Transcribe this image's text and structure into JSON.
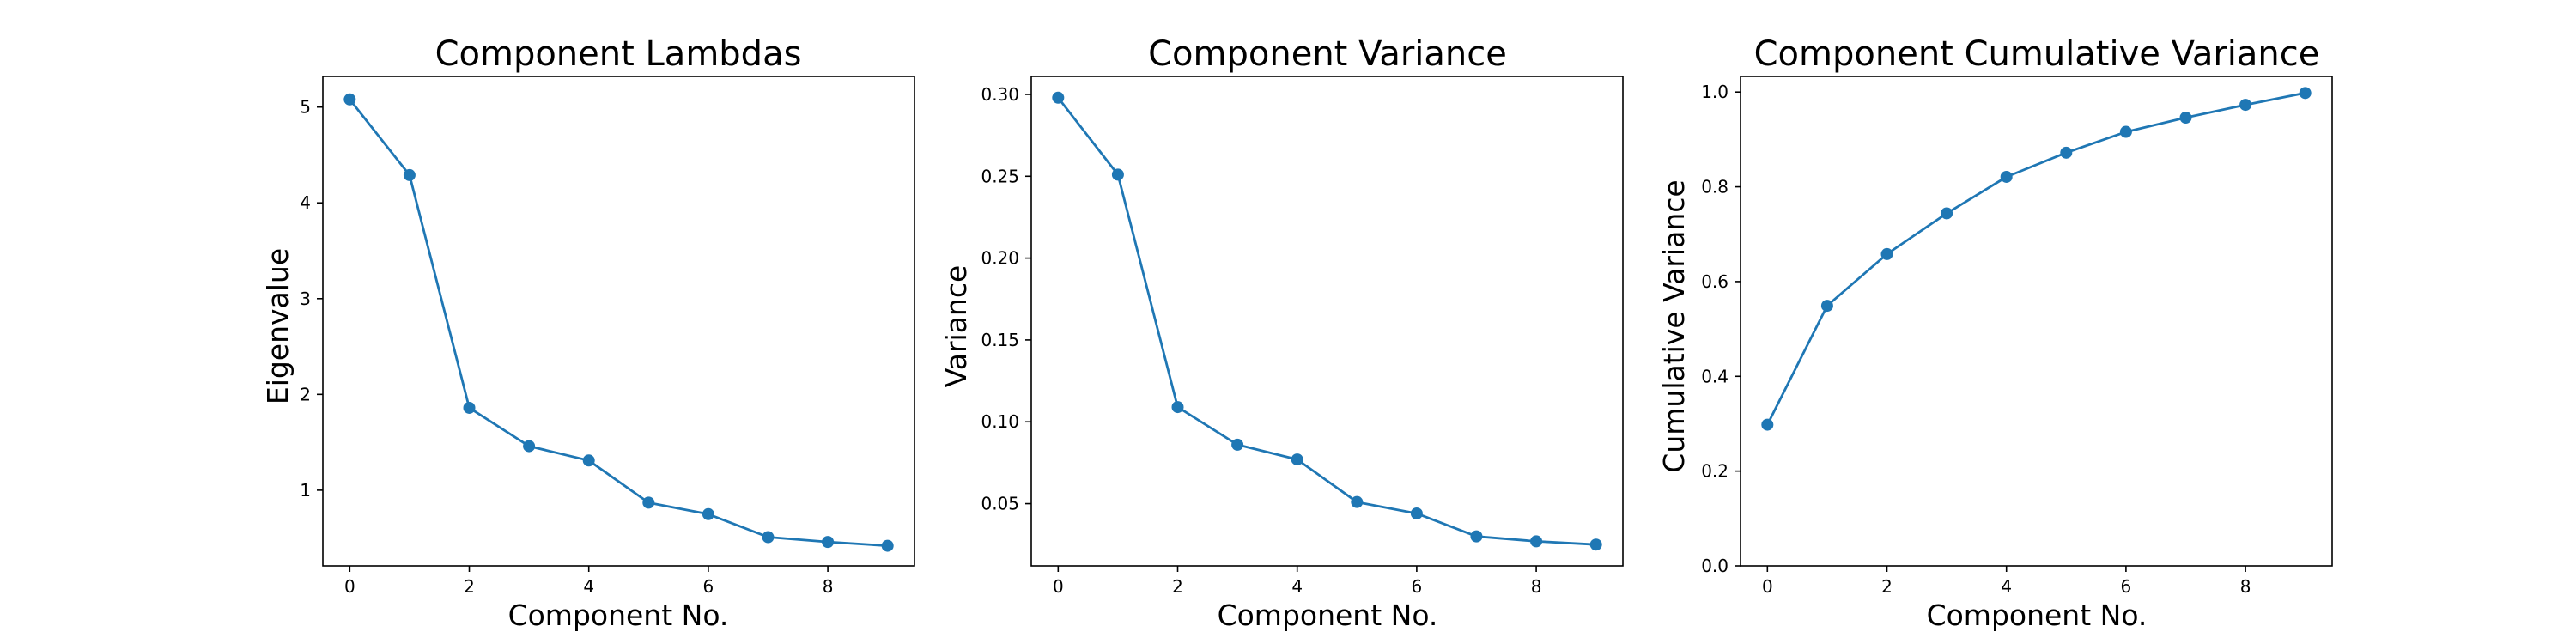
{
  "chart_data": [
    {
      "type": "line",
      "title": "Component Lambdas",
      "xlabel": "Component No.",
      "ylabel": "Eigenvalue",
      "x": [
        0,
        1,
        2,
        3,
        4,
        5,
        6,
        7,
        8,
        9
      ],
      "values": [
        5.08,
        4.29,
        1.86,
        1.46,
        1.31,
        0.87,
        0.75,
        0.51,
        0.46,
        0.42
      ],
      "xlim": [
        -0.45,
        9.45
      ],
      "ylim": [
        0.21,
        5.32
      ],
      "xticks": [
        0,
        2,
        4,
        6,
        8
      ],
      "yticks": [
        1,
        2,
        3,
        4,
        5
      ],
      "ytick_labels": [
        "1",
        "2",
        "3",
        "4",
        "5"
      ],
      "marker": "circle",
      "color": "#1f77b4",
      "grid": false,
      "legend": "none"
    },
    {
      "type": "line",
      "title": "Component Variance",
      "xlabel": "Component No.",
      "ylabel": "Variance",
      "x": [
        0,
        1,
        2,
        3,
        4,
        5,
        6,
        7,
        8,
        9
      ],
      "values": [
        0.298,
        0.251,
        0.109,
        0.086,
        0.077,
        0.051,
        0.044,
        0.03,
        0.027,
        0.025
      ],
      "xlim": [
        -0.45,
        9.45
      ],
      "ylim": [
        0.012,
        0.311
      ],
      "xticks": [
        0,
        2,
        4,
        6,
        8
      ],
      "yticks": [
        0.05,
        0.1,
        0.15,
        0.2,
        0.25,
        0.3
      ],
      "ytick_labels": [
        "0.05",
        "0.10",
        "0.15",
        "0.20",
        "0.25",
        "0.30"
      ],
      "marker": "circle",
      "color": "#1f77b4",
      "grid": false,
      "legend": "none"
    },
    {
      "type": "line",
      "title": "Component Cumulative Variance",
      "xlabel": "Component No.",
      "ylabel": "Cumulative Variance",
      "x": [
        0,
        1,
        2,
        3,
        4,
        5,
        6,
        7,
        8,
        9
      ],
      "values": [
        0.298,
        0.549,
        0.658,
        0.744,
        0.821,
        0.872,
        0.916,
        0.946,
        0.973,
        0.998
      ],
      "xlim": [
        -0.45,
        9.45
      ],
      "ylim": [
        0.0,
        1.033
      ],
      "xticks": [
        0,
        2,
        4,
        6,
        8
      ],
      "yticks": [
        0.0,
        0.2,
        0.4,
        0.6,
        0.8,
        1.0
      ],
      "ytick_labels": [
        "0.0",
        "0.2",
        "0.4",
        "0.6",
        "0.8",
        "1.0"
      ],
      "marker": "circle",
      "color": "#1f77b4",
      "grid": false,
      "legend": "none"
    }
  ]
}
